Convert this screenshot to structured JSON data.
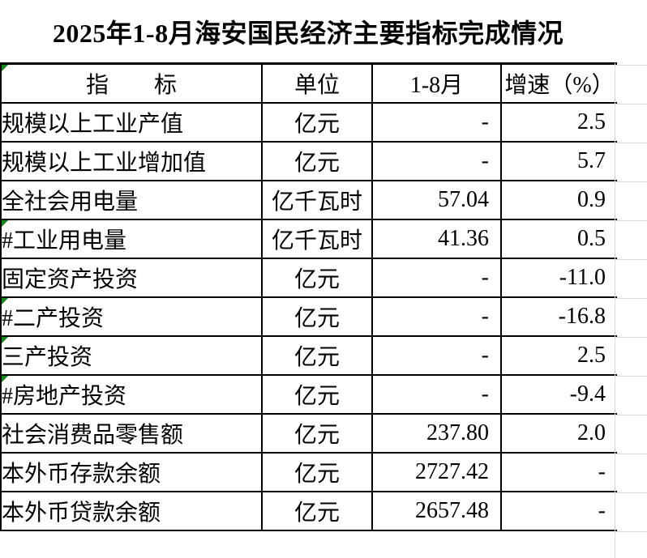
{
  "title": "2025年1-8月海安国民经济主要指标完成情况",
  "table": {
    "headers": {
      "indicator": "指　　标",
      "unit": "单位",
      "period": "1-8月",
      "growth": "增速（%）"
    },
    "header_error_marker": true,
    "rows": [
      {
        "indicator": "规模以上工业产值",
        "unit": "亿元",
        "period": "-",
        "growth": "2.5",
        "indent": 0,
        "error_marker": false
      },
      {
        "indicator": "规模以上工业增加值",
        "unit": "亿元",
        "period": "-",
        "growth": "5.7",
        "indent": 0,
        "error_marker": false
      },
      {
        "indicator": "全社会用电量",
        "unit": "亿千瓦时",
        "period": "57.04",
        "growth": "0.9",
        "indent": 0,
        "error_marker": false
      },
      {
        "indicator": "#工业用电量",
        "unit": "亿千瓦时",
        "period": "41.36",
        "growth": "0.5",
        "indent": 1,
        "error_marker": true
      },
      {
        "indicator": "固定资产投资",
        "unit": "亿元",
        "period": "-",
        "growth": "-11.0",
        "indent": 0,
        "error_marker": false
      },
      {
        "indicator": "#二产投资",
        "unit": "亿元",
        "period": "-",
        "growth": "-16.8",
        "indent": 2,
        "error_marker": true
      },
      {
        "indicator": "三产投资",
        "unit": "亿元",
        "period": "-",
        "growth": "2.5",
        "indent": 3,
        "error_marker": true
      },
      {
        "indicator": "#房地产投资",
        "unit": "亿元",
        "period": "-",
        "growth": "-9.4",
        "indent": 4,
        "error_marker": true
      },
      {
        "indicator": "社会消费品零售额",
        "unit": "亿元",
        "period": "237.80",
        "growth": "2.0",
        "indent": 0,
        "error_marker": false
      },
      {
        "indicator": "本外币存款余额",
        "unit": "亿元",
        "period": "2727.42",
        "growth": "-",
        "indent": 0,
        "error_marker": false
      },
      {
        "indicator": "本外币贷款余额",
        "unit": "亿元",
        "period": "2657.48",
        "growth": "-",
        "indent": 0,
        "error_marker": false
      }
    ],
    "colors": {
      "border": "#000000",
      "gridline": "#dcdcdc",
      "error_indicator": "#168a16",
      "background": "#ffffff",
      "text": "#000000"
    }
  }
}
